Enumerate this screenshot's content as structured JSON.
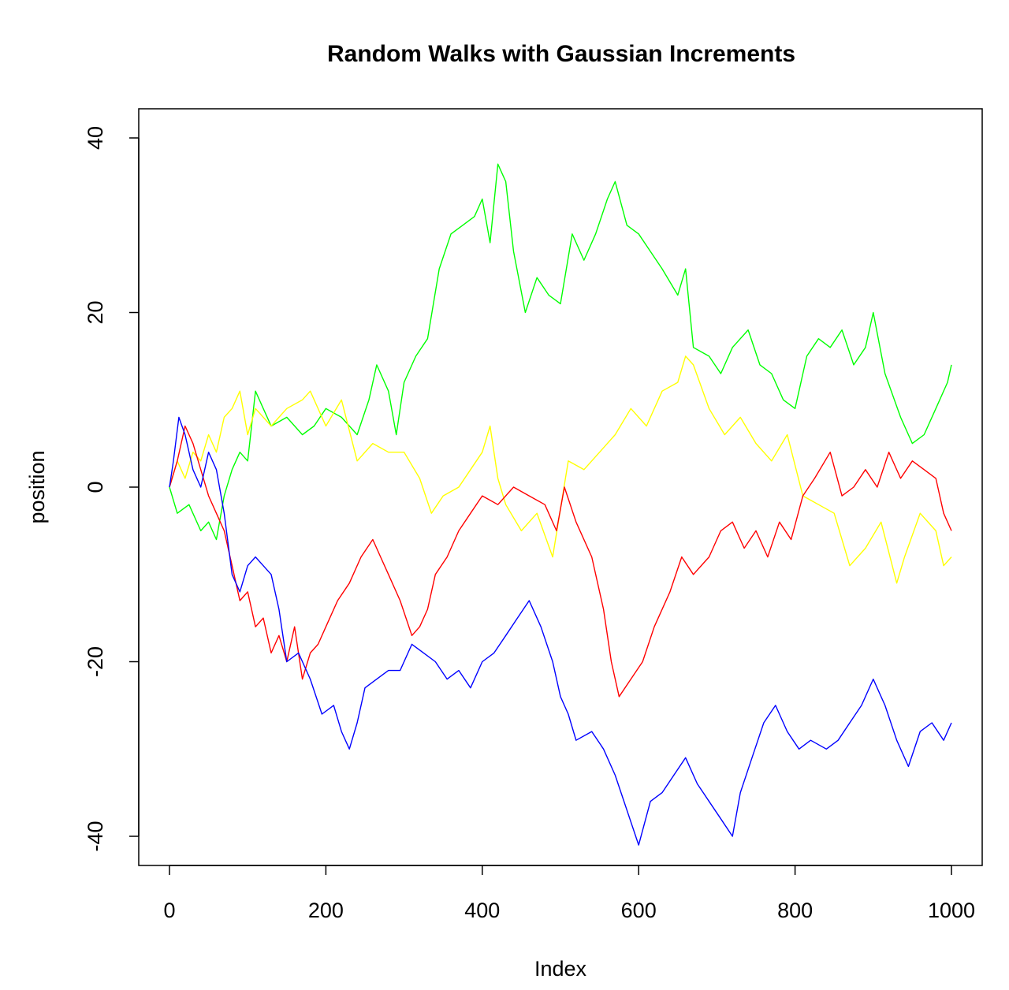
{
  "chart_data": {
    "type": "line",
    "title": "Random Walks with Gaussian Increments",
    "xlabel": "Index",
    "ylabel": "position",
    "xlim": [
      0,
      1000
    ],
    "ylim": [
      -43,
      40
    ],
    "xticks": [
      0,
      200,
      400,
      600,
      800,
      1000
    ],
    "yticks": [
      -40,
      -20,
      0,
      20,
      40
    ],
    "grid": false,
    "legend": "none",
    "series": [
      {
        "color": "#00FF00",
        "x": [
          0,
          10,
          25,
          40,
          50,
          60,
          70,
          80,
          90,
          100,
          110,
          120,
          130,
          150,
          170,
          185,
          200,
          220,
          240,
          255,
          265,
          280,
          290,
          300,
          315,
          330,
          345,
          360,
          375,
          390,
          400,
          410,
          420,
          430,
          440,
          455,
          470,
          485,
          500,
          515,
          530,
          545,
          560,
          570,
          585,
          600,
          615,
          630,
          650,
          660,
          670,
          690,
          705,
          720,
          740,
          755,
          770,
          785,
          800,
          815,
          830,
          845,
          860,
          875,
          890,
          900,
          915,
          935,
          950,
          965,
          980,
          995,
          1000
        ],
        "y": [
          0,
          -3,
          -2,
          -5,
          -4,
          -6,
          -1,
          2,
          4,
          3,
          11,
          9,
          7,
          8,
          6,
          7,
          9,
          8,
          6,
          10,
          14,
          11,
          6,
          12,
          15,
          17,
          25,
          29,
          30,
          31,
          33,
          28,
          37,
          35,
          27,
          20,
          24,
          22,
          21,
          29,
          26,
          29,
          33,
          35,
          30,
          29,
          27,
          25,
          22,
          25,
          16,
          15,
          13,
          16,
          18,
          14,
          13,
          10,
          9,
          15,
          17,
          16,
          18,
          14,
          16,
          20,
          13,
          8,
          5,
          6,
          9,
          12,
          14
        ]
      },
      {
        "color": "#FFFF00",
        "x": [
          0,
          10,
          20,
          30,
          40,
          50,
          60,
          70,
          80,
          90,
          100,
          110,
          130,
          150,
          170,
          180,
          200,
          220,
          240,
          260,
          280,
          300,
          320,
          335,
          350,
          370,
          385,
          400,
          410,
          420,
          430,
          450,
          470,
          490,
          510,
          530,
          550,
          570,
          590,
          610,
          630,
          650,
          660,
          670,
          690,
          710,
          730,
          750,
          770,
          790,
          810,
          830,
          850,
          870,
          890,
          910,
          930,
          940,
          960,
          980,
          990,
          1000
        ],
        "y": [
          0,
          3,
          1,
          4,
          3,
          6,
          4,
          8,
          9,
          11,
          6,
          9,
          7,
          9,
          10,
          11,
          7,
          10,
          3,
          5,
          4,
          4,
          1,
          -3,
          -1,
          0,
          2,
          4,
          7,
          1,
          -2,
          -5,
          -3,
          -8,
          3,
          2,
          4,
          6,
          9,
          7,
          11,
          12,
          15,
          14,
          9,
          6,
          8,
          5,
          3,
          6,
          -1,
          -2,
          -3,
          -9,
          -7,
          -4,
          -11,
          -8,
          -3,
          -5,
          -9,
          -8
        ]
      },
      {
        "color": "#FF0000",
        "x": [
          0,
          10,
          20,
          30,
          40,
          50,
          60,
          70,
          80,
          90,
          100,
          110,
          120,
          130,
          140,
          150,
          160,
          170,
          180,
          190,
          200,
          215,
          230,
          245,
          260,
          270,
          280,
          295,
          310,
          320,
          330,
          340,
          355,
          370,
          385,
          400,
          420,
          440,
          460,
          480,
          495,
          505,
          520,
          540,
          555,
          565,
          575,
          590,
          605,
          620,
          640,
          655,
          670,
          690,
          705,
          720,
          735,
          750,
          765,
          780,
          795,
          810,
          825,
          845,
          860,
          875,
          890,
          905,
          920,
          935,
          950,
          965,
          980,
          990,
          1000
        ],
        "y": [
          0,
          3,
          7,
          5,
          2,
          -1,
          -3,
          -5,
          -9,
          -13,
          -12,
          -16,
          -15,
          -19,
          -17,
          -20,
          -16,
          -22,
          -19,
          -18,
          -16,
          -13,
          -11,
          -8,
          -6,
          -8,
          -10,
          -13,
          -17,
          -16,
          -14,
          -10,
          -8,
          -5,
          -3,
          -1,
          -2,
          0,
          -1,
          -2,
          -5,
          0,
          -4,
          -8,
          -14,
          -20,
          -24,
          -22,
          -20,
          -16,
          -12,
          -8,
          -10,
          -8,
          -5,
          -4,
          -7,
          -5,
          -8,
          -4,
          -6,
          -1,
          1,
          4,
          -1,
          0,
          2,
          0,
          4,
          1,
          3,
          2,
          1,
          -3,
          -5
        ]
      },
      {
        "color": "#0000FF",
        "x": [
          0,
          5,
          12,
          20,
          30,
          40,
          50,
          60,
          70,
          80,
          90,
          100,
          110,
          120,
          130,
          140,
          150,
          165,
          180,
          195,
          210,
          220,
          230,
          240,
          250,
          265,
          280,
          295,
          310,
          325,
          340,
          355,
          370,
          385,
          400,
          415,
          430,
          445,
          460,
          475,
          490,
          500,
          510,
          520,
          540,
          555,
          570,
          585,
          600,
          615,
          630,
          645,
          660,
          675,
          690,
          705,
          720,
          730,
          745,
          760,
          775,
          790,
          805,
          820,
          840,
          855,
          870,
          885,
          900,
          915,
          930,
          945,
          960,
          975,
          990,
          1000
        ],
        "y": [
          0,
          3,
          8,
          6,
          2,
          0,
          4,
          2,
          -3,
          -10,
          -12,
          -9,
          -8,
          -9,
          -10,
          -14,
          -20,
          -19,
          -22,
          -26,
          -25,
          -28,
          -30,
          -27,
          -23,
          -22,
          -21,
          -21,
          -18,
          -19,
          -20,
          -22,
          -21,
          -23,
          -20,
          -19,
          -17,
          -15,
          -13,
          -16,
          -20,
          -24,
          -26,
          -29,
          -28,
          -30,
          -33,
          -37,
          -41,
          -36,
          -35,
          -33,
          -31,
          -34,
          -36,
          -38,
          -40,
          -35,
          -31,
          -27,
          -25,
          -28,
          -30,
          -29,
          -30,
          -29,
          -27,
          -25,
          -22,
          -25,
          -29,
          -32,
          -28,
          -27,
          -29,
          -27
        ]
      }
    ]
  }
}
